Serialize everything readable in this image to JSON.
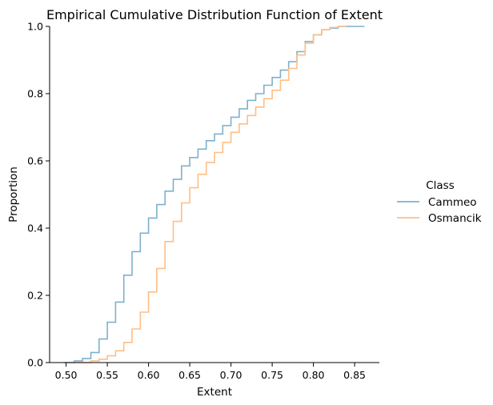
{
  "chart_data": {
    "type": "line",
    "title": "Empirical Cumulative Distribution Function of Extent",
    "xlabel": "Extent",
    "ylabel": "Proportion",
    "xlim": [
      0.48,
      0.88
    ],
    "ylim": [
      0.0,
      1.0
    ],
    "xticks": [
      "0.50",
      "0.55",
      "0.60",
      "0.65",
      "0.70",
      "0.75",
      "0.80",
      "0.85"
    ],
    "yticks": [
      "0.0",
      "0.2",
      "0.4",
      "0.6",
      "0.8",
      "1.0"
    ],
    "grid": false,
    "legend": {
      "title": "Class",
      "placement": "right, outside plot"
    },
    "series": [
      {
        "name": "Cammeo",
        "color": "#7fb0cd",
        "x": [
          0.497,
          0.51,
          0.52,
          0.53,
          0.54,
          0.55,
          0.56,
          0.57,
          0.58,
          0.59,
          0.6,
          0.61,
          0.62,
          0.63,
          0.64,
          0.65,
          0.66,
          0.67,
          0.68,
          0.69,
          0.7,
          0.71,
          0.72,
          0.73,
          0.74,
          0.75,
          0.76,
          0.77,
          0.78,
          0.79,
          0.8,
          0.81,
          0.82,
          0.83,
          0.84,
          0.862
        ],
        "y": [
          0.0,
          0.005,
          0.012,
          0.03,
          0.07,
          0.12,
          0.18,
          0.26,
          0.33,
          0.385,
          0.43,
          0.47,
          0.51,
          0.545,
          0.585,
          0.61,
          0.635,
          0.66,
          0.68,
          0.705,
          0.73,
          0.755,
          0.78,
          0.8,
          0.825,
          0.848,
          0.87,
          0.895,
          0.925,
          0.955,
          0.975,
          0.99,
          0.995,
          1.0,
          1.0,
          1.0
        ]
      },
      {
        "name": "Osmancik",
        "color": "#ffbe86",
        "x": [
          0.51,
          0.53,
          0.54,
          0.55,
          0.56,
          0.57,
          0.58,
          0.59,
          0.6,
          0.61,
          0.62,
          0.63,
          0.64,
          0.65,
          0.66,
          0.67,
          0.68,
          0.69,
          0.7,
          0.71,
          0.72,
          0.73,
          0.74,
          0.75,
          0.76,
          0.77,
          0.78,
          0.79,
          0.8,
          0.81,
          0.82,
          0.83,
          0.84
        ],
        "y": [
          0.0,
          0.005,
          0.01,
          0.02,
          0.035,
          0.06,
          0.1,
          0.15,
          0.21,
          0.28,
          0.36,
          0.42,
          0.475,
          0.52,
          0.56,
          0.595,
          0.625,
          0.655,
          0.685,
          0.71,
          0.735,
          0.76,
          0.785,
          0.81,
          0.84,
          0.875,
          0.915,
          0.95,
          0.975,
          0.99,
          0.997,
          1.0,
          1.0
        ]
      }
    ]
  }
}
